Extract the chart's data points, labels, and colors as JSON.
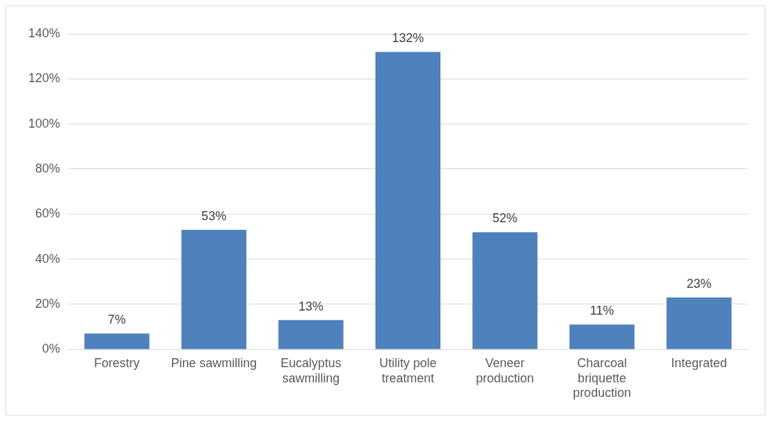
{
  "chart_data": {
    "type": "bar",
    "categories": [
      "Forestry",
      "Pine sawmilling",
      "Eucalyptus sawmilling",
      "Utility pole treatment",
      "Veneer production",
      "Charcoal briquette production",
      "Integrated"
    ],
    "values": [
      7,
      53,
      13,
      132,
      52,
      11,
      23
    ],
    "value_labels": [
      "7%",
      "53%",
      "13%",
      "132%",
      "52%",
      "11%",
      "23%"
    ],
    "color": "#4f81bd",
    "ylim": [
      0,
      140
    ],
    "yticks": [
      {
        "value": 0,
        "label": "0%"
      },
      {
        "value": 20,
        "label": "20%"
      },
      {
        "value": 40,
        "label": "40%"
      },
      {
        "value": 60,
        "label": "60%"
      },
      {
        "value": 80,
        "label": "80%"
      },
      {
        "value": 100,
        "label": "100%"
      },
      {
        "value": 120,
        "label": "120%"
      },
      {
        "value": 140,
        "label": "140%"
      }
    ],
    "grid": "y"
  }
}
